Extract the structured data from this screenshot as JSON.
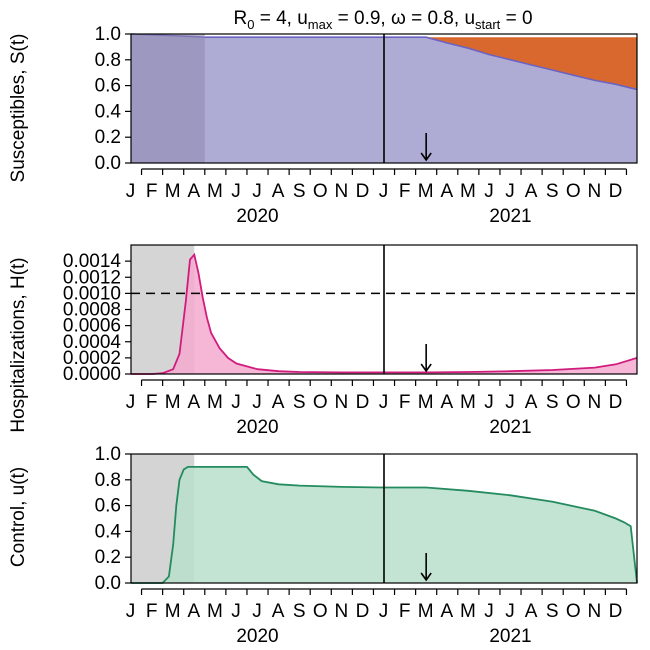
{
  "chart_data": [
    {
      "type": "area",
      "title_parts": {
        "r0_label": "R",
        "r0_sub": "0",
        "r0_value": " = 4, ",
        "umax_label": "u",
        "umax_sub": "max",
        "umax_value": " = 0.9, ",
        "omega": "ω = 0.8, ",
        "ustart_label": "u",
        "ustart_sub": "start",
        "ustart_value": " = 0"
      },
      "ylabel": "Susceptibles, S(t)",
      "ylim": [
        0,
        1
      ],
      "yticks": [
        "0.0",
        "0.2",
        "0.4",
        "0.6",
        "0.8",
        "1.0"
      ],
      "month_ticks": [
        "J",
        "F",
        "M",
        "A",
        "M",
        "J",
        "J",
        "A",
        "S",
        "O",
        "N",
        "D",
        "J",
        "F",
        "M",
        "A",
        "M",
        "J",
        "J",
        "A",
        "S",
        "O",
        "N",
        "D"
      ],
      "years": [
        "2020",
        "2021"
      ],
      "shaded_window_months": [
        0,
        3.5
      ],
      "vertical_line_month": 12,
      "arrow_month": 14,
      "series": [
        {
          "role": "susceptible",
          "x": [
            0,
            3,
            3.5,
            12,
            14,
            15,
            16,
            17,
            18,
            19,
            20,
            21,
            22,
            23,
            24
          ],
          "values": [
            1.0,
            0.98,
            0.975,
            0.975,
            0.975,
            0.93,
            0.89,
            0.84,
            0.8,
            0.76,
            0.72,
            0.68,
            0.64,
            0.61,
            0.57
          ]
        },
        {
          "role": "band-top",
          "x": [
            14,
            24
          ],
          "values": [
            0.975,
            0.975
          ]
        }
      ],
      "colors": {
        "susceptible": "#AEABD5",
        "susceptible_line": "#6B63C2",
        "band": "#D9682E",
        "shade": "#8E89AE",
        "shade_opacity": 0.55
      }
    },
    {
      "type": "area",
      "ylabel": "Hospitalizations, H(t)",
      "ylim": [
        0,
        0.0016
      ],
      "yticks": [
        "0.0000",
        "0.0002",
        "0.0004",
        "0.0006",
        "0.0008",
        "0.0010",
        "0.0012",
        "0.0014"
      ],
      "ytick_values": [
        0,
        0.0002,
        0.0004,
        0.0006,
        0.0008,
        0.001,
        0.0012,
        0.0014
      ],
      "threshold": 0.001,
      "month_ticks": [
        "J",
        "F",
        "M",
        "A",
        "M",
        "J",
        "J",
        "A",
        "S",
        "O",
        "N",
        "D",
        "J",
        "F",
        "M",
        "A",
        "M",
        "J",
        "J",
        "A",
        "S",
        "O",
        "N",
        "D"
      ],
      "years": [
        "2020",
        "2021"
      ],
      "shaded_window_months": [
        0,
        3.0
      ],
      "vertical_line_month": 12,
      "arrow_month": 14,
      "series": [
        {
          "role": "hospitalizations",
          "x": [
            0,
            1,
            1.5,
            2,
            2.3,
            2.6,
            2.8,
            3.0,
            3.2,
            3.4,
            3.6,
            3.8,
            4.2,
            4.6,
            5,
            6,
            7,
            8,
            10,
            12,
            14,
            16,
            18,
            20,
            22,
            23,
            24
          ],
          "values": [
            0,
            0,
            1e-05,
            6e-05,
            0.00025,
            0.0009,
            0.00142,
            0.00148,
            0.00125,
            0.00095,
            0.0007,
            0.00051,
            0.00032,
            0.0002,
            0.00013,
            6e-05,
            3.5e-05,
            2.5e-05,
            2e-05,
            2e-05,
            2e-05,
            2.5e-05,
            3.5e-05,
            5e-05,
            8e-05,
            0.00012,
            0.0002
          ]
        }
      ],
      "colors": {
        "line": "#D01C7C",
        "fill": "#F4A9CF",
        "shade": "#BEBEBE",
        "shade_opacity": 0.65
      }
    },
    {
      "type": "area",
      "ylabel": "Control, u(t)",
      "ylim": [
        0,
        1
      ],
      "yticks": [
        "0.0",
        "0.2",
        "0.4",
        "0.6",
        "0.8",
        "1.0"
      ],
      "month_ticks": [
        "J",
        "F",
        "M",
        "A",
        "M",
        "J",
        "J",
        "A",
        "S",
        "O",
        "N",
        "D",
        "J",
        "F",
        "M",
        "A",
        "M",
        "J",
        "J",
        "A",
        "S",
        "O",
        "N",
        "D"
      ],
      "years": [
        "2020",
        "2021"
      ],
      "shaded_window_months": [
        0,
        3.0
      ],
      "vertical_line_month": 12,
      "arrow_month": 14,
      "series": [
        {
          "role": "control",
          "x": [
            0,
            1.5,
            1.8,
            2.0,
            2.15,
            2.3,
            2.5,
            2.7,
            3,
            4,
            5,
            5.5,
            5.8,
            6.2,
            7,
            8,
            10,
            12,
            14,
            16,
            18,
            20,
            22,
            23,
            23.4,
            23.7,
            24
          ],
          "values": [
            0,
            0,
            0.05,
            0.3,
            0.6,
            0.8,
            0.88,
            0.9,
            0.9,
            0.9,
            0.9,
            0.9,
            0.84,
            0.79,
            0.765,
            0.755,
            0.745,
            0.74,
            0.74,
            0.715,
            0.68,
            0.63,
            0.56,
            0.5,
            0.47,
            0.44,
            0
          ]
        }
      ],
      "colors": {
        "line": "#238B5E",
        "fill": "#B9DECB",
        "shade": "#C2C2C2",
        "shade_opacity": 0.7
      }
    }
  ]
}
